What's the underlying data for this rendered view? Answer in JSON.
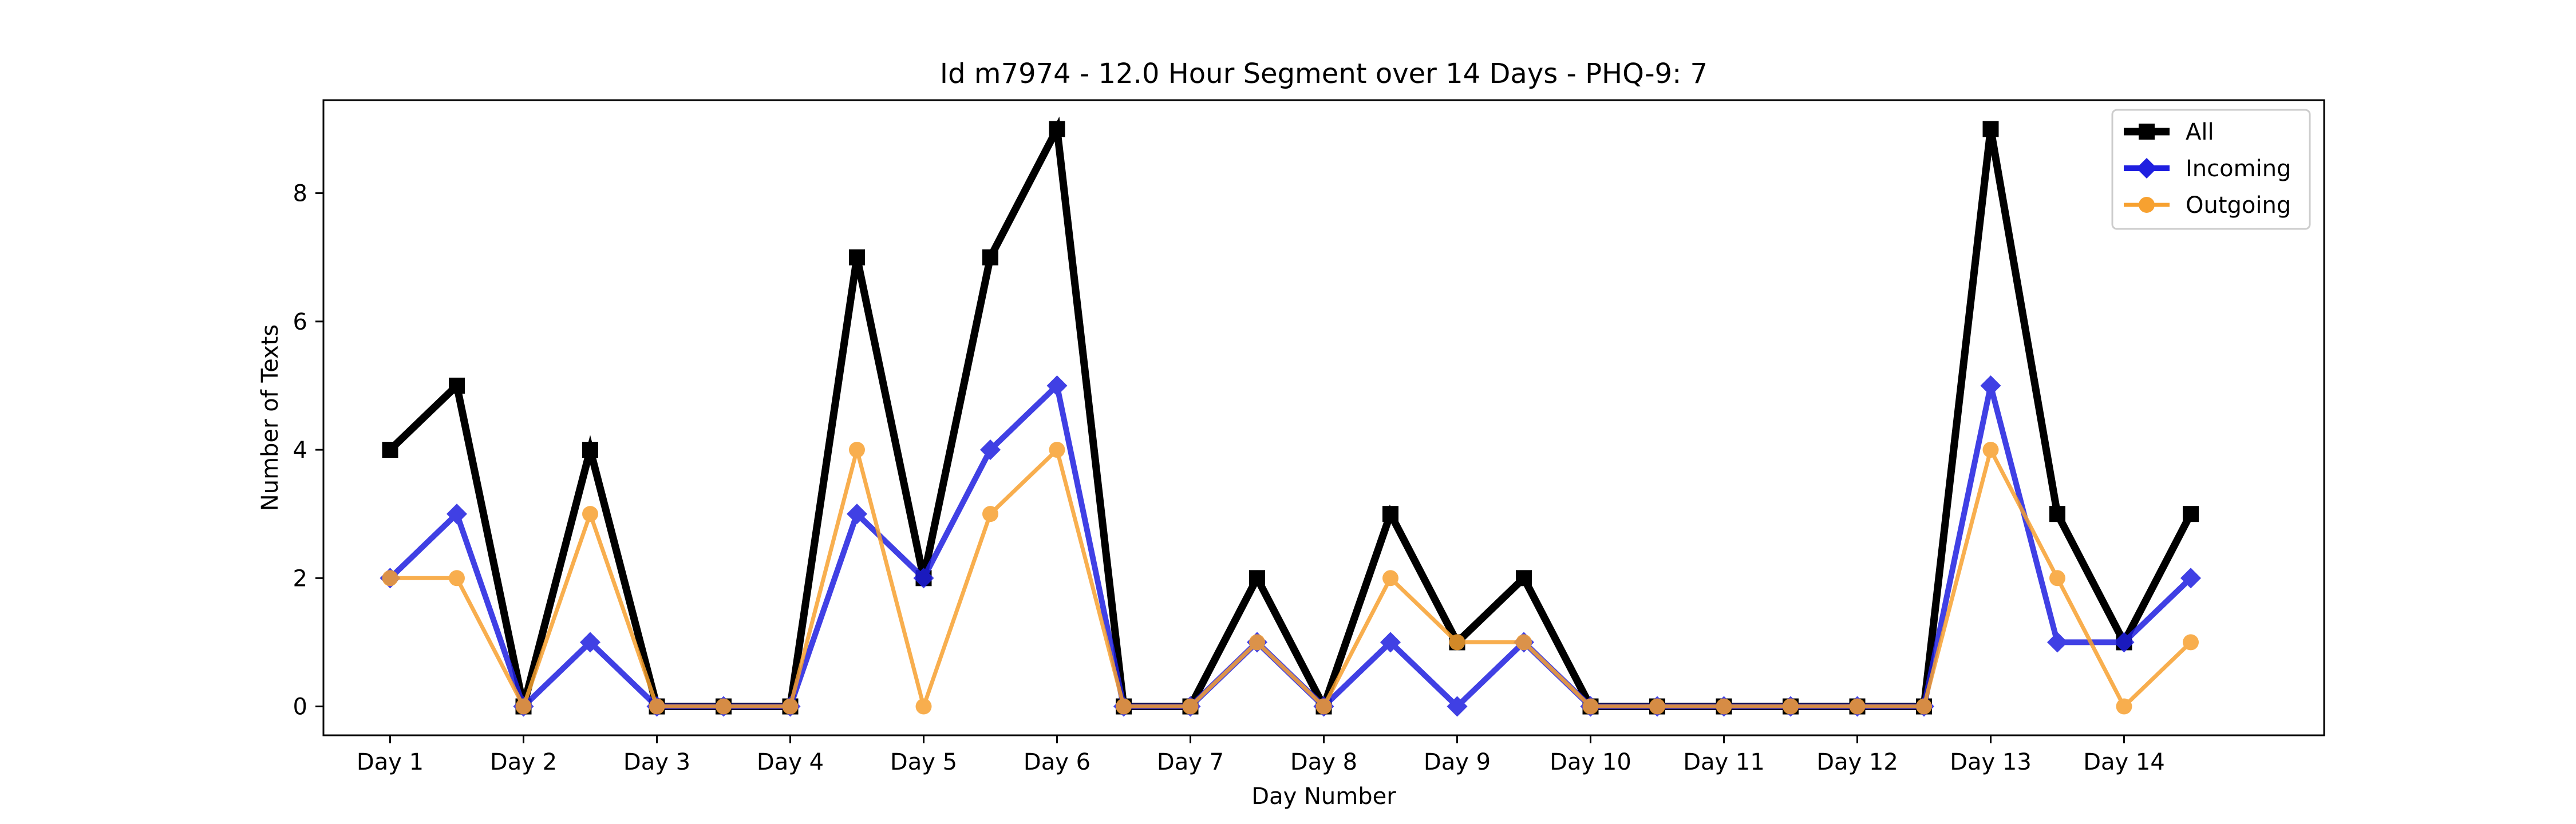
{
  "chart_data": {
    "type": "line",
    "title": "Id m7974 - 12.0 Hour Segment over 14 Days - PHQ-9: 7",
    "xlabel": "Day Number",
    "ylabel": "Number of Texts",
    "x_ticks": [
      1,
      3,
      5,
      7,
      9,
      11,
      13,
      15,
      17,
      19,
      21,
      23,
      25,
      27
    ],
    "categories": [
      "Day 1",
      "Day 2",
      "Day 3",
      "Day 4",
      "Day 5",
      "Day 6",
      "Day 7",
      "Day 8",
      "Day 9",
      "Day 10",
      "Day 11",
      "Day 12",
      "Day 13",
      "Day 14"
    ],
    "x": [
      1,
      2,
      3,
      4,
      5,
      6,
      7,
      8,
      9,
      10,
      11,
      12,
      13,
      14,
      15,
      16,
      17,
      18,
      19,
      20,
      21,
      22,
      23,
      24,
      25,
      26,
      27,
      28
    ],
    "xlim": [
      0.0,
      30.0
    ],
    "ylim": [
      -0.45,
      9.45
    ],
    "y_ticks": [
      0,
      2,
      4,
      6,
      8
    ],
    "grid": false,
    "legend_position": "top-right",
    "series": [
      {
        "name": "All",
        "color": "#000000",
        "marker": "square",
        "values": [
          4,
          5,
          0,
          4,
          0,
          0,
          0,
          7,
          2,
          7,
          9,
          0,
          0,
          2,
          0,
          3,
          1,
          2,
          0,
          0,
          0,
          0,
          0,
          0,
          9,
          3,
          1,
          3
        ]
      },
      {
        "name": "Incoming",
        "color": "#1f1fe0",
        "marker": "diamond",
        "values": [
          2,
          3,
          0,
          1,
          0,
          0,
          0,
          3,
          2,
          4,
          5,
          0,
          0,
          1,
          0,
          1,
          0,
          1,
          0,
          0,
          0,
          0,
          0,
          0,
          5,
          1,
          1,
          2
        ]
      },
      {
        "name": "Outgoing",
        "color": "#f7a130",
        "marker": "circle",
        "values": [
          2,
          2,
          0,
          3,
          0,
          0,
          0,
          4,
          0,
          3,
          4,
          0,
          0,
          1,
          0,
          2,
          1,
          1,
          0,
          0,
          0,
          0,
          0,
          0,
          4,
          2,
          0,
          1
        ]
      }
    ]
  }
}
